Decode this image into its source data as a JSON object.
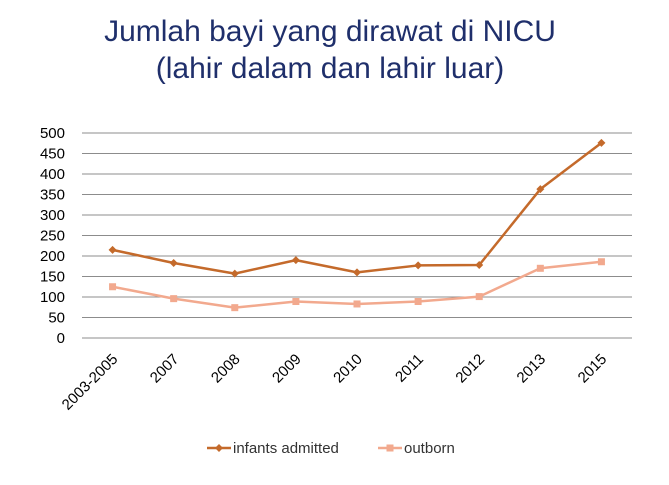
{
  "chart_data": {
    "type": "line",
    "title": "Jumlah bayi yang dirawat di NICU",
    "subtitle": "(lahir dalam dan lahir luar)",
    "xlabel": "",
    "ylabel": "",
    "categories": [
      "2003-2005",
      "2007",
      "2008",
      "2009",
      "2010",
      "2011",
      "2012",
      "2013",
      "2015"
    ],
    "ylim": [
      0,
      500
    ],
    "yticks": [
      0,
      50,
      100,
      150,
      200,
      250,
      300,
      350,
      400,
      450,
      500
    ],
    "grid": true,
    "legend_position": "bottom",
    "series": [
      {
        "name": "infants admitted",
        "marker": "diamond",
        "color": "#c46a2b",
        "values": [
          215,
          183,
          157,
          190,
          160,
          177,
          178,
          363,
          476
        ]
      },
      {
        "name": "outborn",
        "marker": "square",
        "color": "#f2a98e",
        "values": [
          125,
          96,
          74,
          89,
          83,
          89,
          101,
          170,
          186
        ]
      }
    ]
  }
}
